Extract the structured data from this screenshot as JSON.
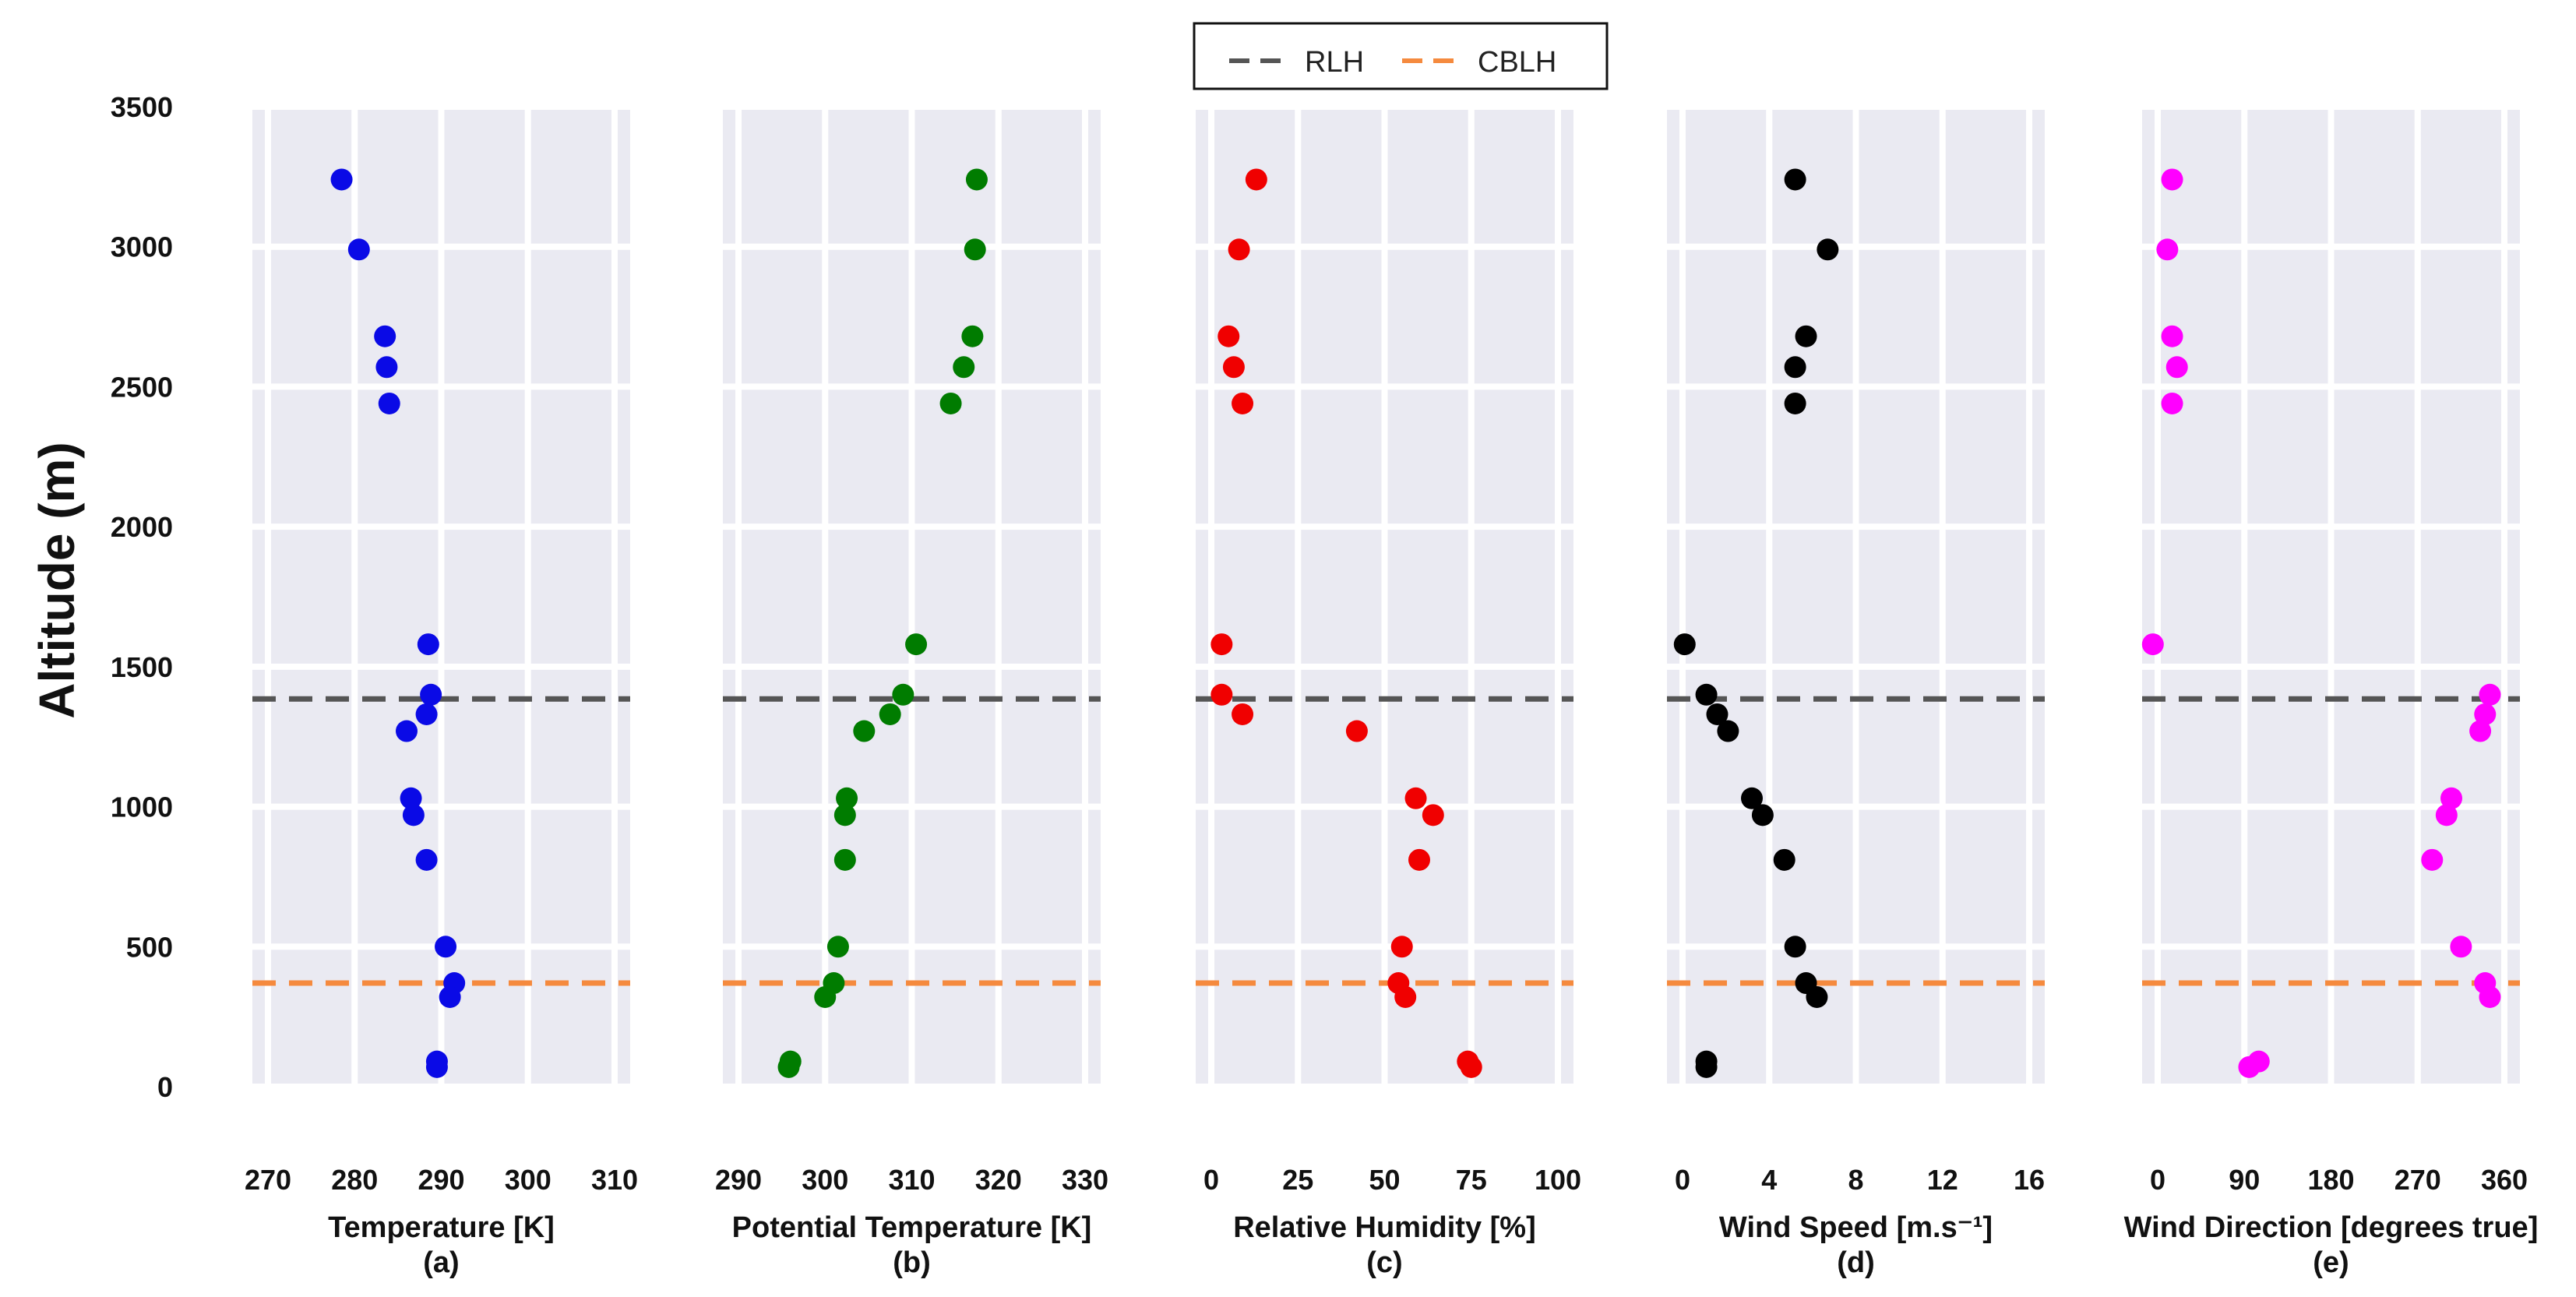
{
  "chart_data": {
    "type": "scatter",
    "ylabel": "Altitude (m)",
    "ylim": [
      0,
      3500
    ],
    "yticks": [
      "0",
      "500",
      "1000",
      "1500",
      "2000",
      "2500",
      "3000",
      "3500"
    ],
    "altitudes": [
      3240,
      2990,
      2680,
      2570,
      2440,
      1580,
      1400,
      1330,
      1270,
      1030,
      970,
      810,
      500,
      370,
      320,
      90,
      70
    ],
    "legend": [
      {
        "label": "RLH",
        "color": "#555555"
      },
      {
        "label": "CBLH",
        "color": "#f58a3e"
      }
    ],
    "reference_lines": {
      "RLH": 1385,
      "CBLH": 370
    },
    "panels": [
      {
        "xlabel": "Temperature [K]",
        "sublabel": "(a)",
        "color": "#0a0ae6",
        "xlim": [
          270,
          310
        ],
        "xticks": [
          "270",
          "280",
          "290",
          "300",
          "310"
        ],
        "values": [
          278.5,
          280.5,
          283.5,
          283.7,
          284,
          288.5,
          288.8,
          288.3,
          286,
          286.5,
          286.8,
          288.3,
          290.5,
          291.5,
          291,
          289.5,
          289.5
        ]
      },
      {
        "xlabel": "Potential Temperature [K]",
        "sublabel": "(b)",
        "color": "#007c00",
        "xlim": [
          290,
          330
        ],
        "xticks": [
          "290",
          "300",
          "310",
          "320",
          "330"
        ],
        "values": [
          317.5,
          317.3,
          317,
          316,
          314.5,
          310.5,
          309,
          307.5,
          304.5,
          302.5,
          302.3,
          302.3,
          301.5,
          301,
          300,
          296,
          295.8
        ]
      },
      {
        "xlabel": "Relative Humidity [%]",
        "sublabel": "(c)",
        "color": "#f00000",
        "xlim": [
          0,
          100
        ],
        "xticks": [
          "0",
          "25",
          "50",
          "75",
          "100"
        ],
        "values": [
          13,
          8,
          5,
          6.5,
          9,
          3,
          3,
          9,
          42,
          59,
          64,
          60,
          55,
          54,
          56,
          74,
          75
        ]
      },
      {
        "xlabel": "Wind Speed [m.s⁻¹]",
        "sublabel": "(d)",
        "color": "#000000",
        "xlim": [
          0,
          16
        ],
        "xticks": [
          "0",
          "4",
          "8",
          "12",
          "16"
        ],
        "values": [
          5.2,
          6.7,
          5.7,
          5.2,
          5.2,
          0.1,
          1.1,
          1.6,
          2.1,
          3.2,
          3.7,
          4.7,
          5.2,
          5.7,
          6.2,
          1.1,
          1.1
        ]
      },
      {
        "xlabel": "Wind Direction [degrees true]",
        "sublabel": "(e)",
        "color": "#ff00ff",
        "xlim": [
          0,
          360
        ],
        "xticks": [
          "0",
          "90",
          "180",
          "270",
          "360"
        ],
        "values": [
          15,
          10,
          15,
          20,
          15,
          -5,
          345,
          340,
          335,
          305,
          300,
          285,
          315,
          340,
          345,
          105,
          95
        ]
      }
    ]
  }
}
